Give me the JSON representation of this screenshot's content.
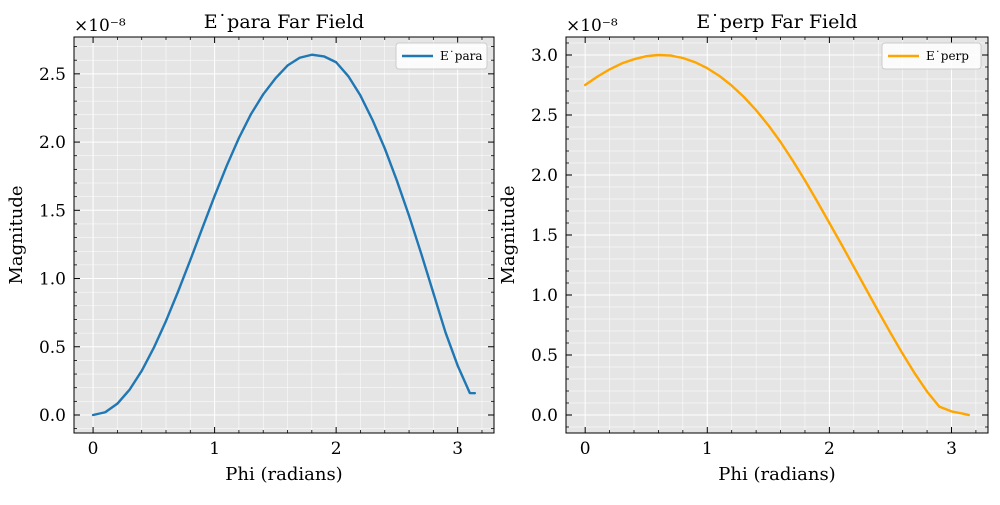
{
  "chart_data": [
    {
      "type": "line",
      "title": "E˙para Far Field",
      "xlabel": "Phi (radians)",
      "ylabel": "Magnitude",
      "offset_text": "×10⁻⁸",
      "xlim": [
        -0.157,
        3.299
      ],
      "ylim": [
        -0.132,
        2.77
      ],
      "xticks": [
        0,
        1,
        2,
        3
      ],
      "yticks": [
        0.0,
        0.5,
        1.0,
        1.5,
        2.0,
        2.5
      ],
      "ytick_labels": [
        "0.0",
        "0.5",
        "1.0",
        "1.5",
        "2.0",
        "2.5"
      ],
      "grid": true,
      "legend_position": "top-right",
      "series": [
        {
          "name": "E˙para",
          "color": "#1f77b4",
          "x": [
            0,
            0.1,
            0.2,
            0.3,
            0.4,
            0.5,
            0.6,
            0.7,
            0.8,
            0.9,
            1.0,
            1.1,
            1.2,
            1.3,
            1.4,
            1.5,
            1.6,
            1.7,
            1.8,
            1.9,
            2.0,
            2.1,
            2.2,
            2.3,
            2.4,
            2.5,
            2.6,
            2.7,
            2.8,
            2.9,
            3.0,
            3.1,
            3.1416
          ],
          "values": [
            0.0,
            0.02,
            0.083,
            0.185,
            0.323,
            0.493,
            0.689,
            0.906,
            1.135,
            1.372,
            1.605,
            1.827,
            2.03,
            2.206,
            2.35,
            2.466,
            2.561,
            2.618,
            2.64,
            2.628,
            2.585,
            2.483,
            2.341,
            2.161,
            1.954,
            1.717,
            1.46,
            1.183,
            0.894,
            0.605,
            0.362,
            0.161,
            0.16
          ]
        }
      ]
    },
    {
      "type": "line",
      "title": "E˙perp Far Field",
      "xlabel": "Phi (radians)",
      "ylabel": "Magnitude",
      "offset_text": "×10⁻⁸",
      "xlim": [
        -0.157,
        3.299
      ],
      "ylim": [
        -0.15,
        3.15
      ],
      "xticks": [
        0,
        1,
        2,
        3
      ],
      "yticks": [
        0.0,
        0.5,
        1.0,
        1.5,
        2.0,
        2.5,
        3.0
      ],
      "ytick_labels": [
        "0.0",
        "0.5",
        "1.0",
        "1.5",
        "2.0",
        "2.5",
        "3.0"
      ],
      "grid": true,
      "legend_position": "top-right",
      "series": [
        {
          "name": "E˙perp",
          "color": "#ffa500",
          "x": [
            0,
            0.1,
            0.2,
            0.3,
            0.4,
            0.5,
            0.6,
            0.7,
            0.8,
            0.9,
            1.0,
            1.1,
            1.2,
            1.3,
            1.4,
            1.5,
            1.6,
            1.7,
            1.8,
            1.9,
            2.0,
            2.1,
            2.2,
            2.3,
            2.4,
            2.5,
            2.6,
            2.7,
            2.8,
            2.9,
            3.0,
            3.1,
            3.1416
          ],
          "values": [
            2.75,
            2.82,
            2.88,
            2.93,
            2.965,
            2.99,
            3.0,
            2.995,
            2.975,
            2.94,
            2.89,
            2.825,
            2.745,
            2.65,
            2.54,
            2.415,
            2.275,
            2.12,
            1.955,
            1.78,
            1.6,
            1.42,
            1.235,
            1.05,
            0.865,
            0.685,
            0.51,
            0.345,
            0.195,
            0.07,
            0.03,
            0.01,
            0.0
          ]
        }
      ]
    }
  ]
}
